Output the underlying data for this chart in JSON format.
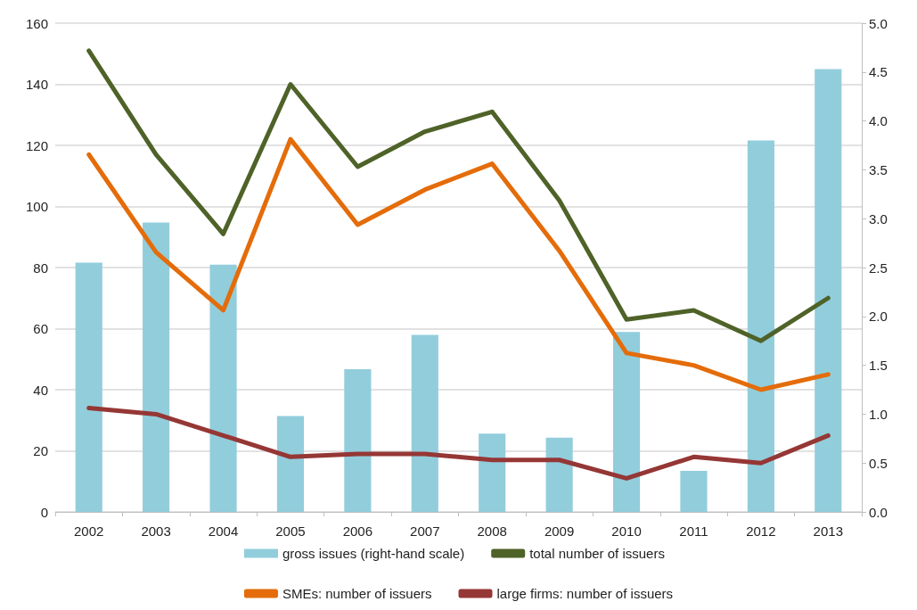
{
  "chart_data": {
    "type": "line",
    "categories": [
      "2002",
      "2003",
      "2004",
      "2005",
      "2006",
      "2007",
      "2008",
      "2009",
      "2010",
      "2011",
      "2012",
      "2013"
    ],
    "series": [
      {
        "name": "gross issues (right-hand scale)",
        "type": "bar",
        "axis": "y2",
        "color": "#92cddc",
        "values": [
          2.55,
          2.96,
          2.53,
          0.98,
          1.46,
          1.81,
          0.8,
          0.76,
          1.84,
          0.42,
          3.8,
          4.53
        ]
      },
      {
        "name": "total number of issuers",
        "color": "#4f6228",
        "values": [
          151,
          117,
          91,
          140,
          113,
          124.5,
          131,
          102,
          63,
          66,
          56,
          70
        ]
      },
      {
        "name": "SMEs: number of issuers",
        "color": "#e46c0a",
        "values": [
          117,
          85,
          66,
          122,
          94,
          105.5,
          114,
          85.5,
          52,
          48,
          40,
          45
        ]
      },
      {
        "name": "large firms: number of issuers",
        "color": "#953735",
        "values": [
          34,
          32,
          25,
          18,
          19,
          19,
          17,
          17,
          11,
          18,
          16,
          25
        ]
      }
    ],
    "ylim": [
      0,
      160
    ],
    "yticks": [
      0,
      20,
      40,
      60,
      80,
      100,
      120,
      140,
      160
    ],
    "y2lim": [
      0,
      5
    ],
    "y2ticks": [
      {
        "value": 0,
        "label": "0.0"
      },
      {
        "value": 0.5,
        "label": "0.5"
      },
      {
        "value": 1,
        "label": "1.0"
      },
      {
        "value": 1.5,
        "label": "1.5"
      },
      {
        "value": 2,
        "label": "2.0"
      },
      {
        "value": 2.5,
        "label": "2.5"
      },
      {
        "value": 3,
        "label": "3.0"
      },
      {
        "value": 3.5,
        "label": "3.5"
      },
      {
        "value": 4,
        "label": "4.0"
      },
      {
        "value": 4.5,
        "label": "4.5"
      },
      {
        "value": 5,
        "label": "5.0"
      }
    ],
    "grid": "y",
    "legend": "bottom",
    "marker": "none",
    "line_style": "solid"
  }
}
